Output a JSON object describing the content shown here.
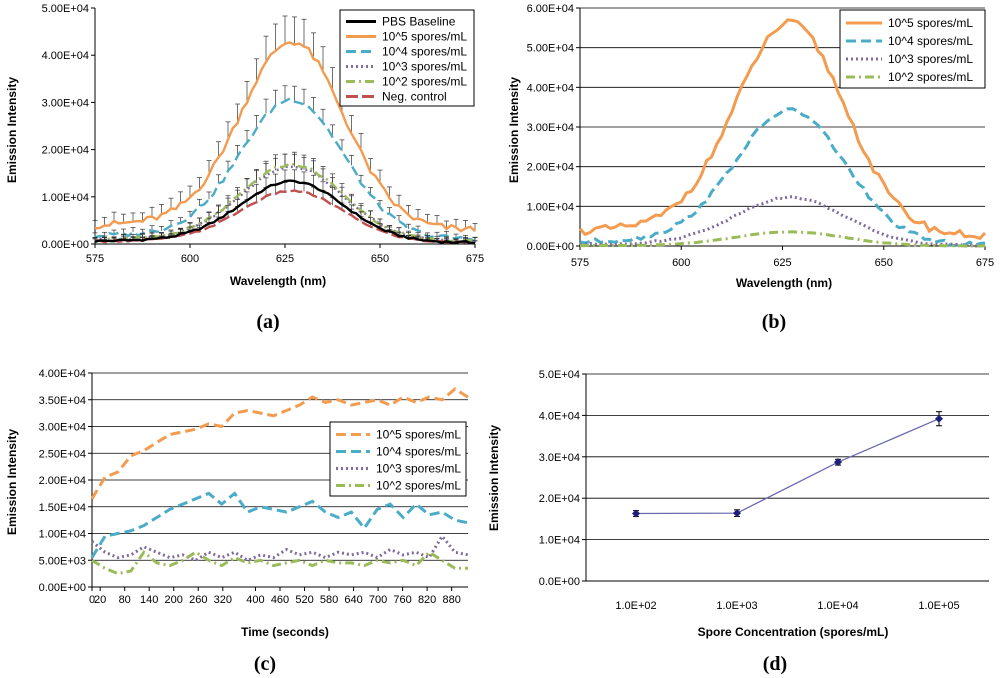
{
  "chart_data": [
    {
      "type": "line",
      "panel": "a",
      "caption": "(a)",
      "xlabel": "Wavelength (nm)",
      "ylabel": "Emission Intensity",
      "xlim": [
        575,
        675
      ],
      "ylim": [
        0,
        50000
      ],
      "x_ticks": [
        "575",
        "600",
        "625",
        "650",
        "675"
      ],
      "y_ticks": [
        "0.00E+00",
        "1.00E+04",
        "2.00E+04",
        "3.00E+04",
        "4.00E+04",
        "5.00E+04"
      ],
      "legend_position": "top-right",
      "error_bars": true,
      "series": [
        {
          "name": "PBS Baseline",
          "color": "#000000",
          "dash": "solid",
          "baseline": 300,
          "peak": 13000,
          "err": 1800
        },
        {
          "name": "10^5 spores/mL",
          "color": "#f39b4f",
          "dash": "solid",
          "baseline": 3000,
          "peak": 42000,
          "err": 4500
        },
        {
          "name": "10^4 spores/mL",
          "color": "#4aacc6",
          "dash": "dashed",
          "baseline": 1000,
          "peak": 30000,
          "err": 2500
        },
        {
          "name": "10^3 spores/mL",
          "color": "#7f6c9e",
          "dash": "dotted",
          "baseline": 500,
          "peak": 16000,
          "err": 2000
        },
        {
          "name": "10^2 spores/mL",
          "color": "#9bbb59",
          "dash": "dashdot",
          "baseline": 500,
          "peak": 16500,
          "err": 2000
        },
        {
          "name": "Neg. control",
          "color": "#c0504d",
          "dash": "longdash",
          "baseline": 300,
          "peak": 11000,
          "err": 1500
        }
      ]
    },
    {
      "type": "line",
      "panel": "b",
      "caption": "(b)",
      "xlabel": "Wavelength (nm)",
      "ylabel": "Emission Intensity",
      "xlim": [
        575,
        675
      ],
      "ylim": [
        0,
        60000
      ],
      "x_ticks": [
        "575",
        "600",
        "625",
        "650",
        "675"
      ],
      "y_ticks": [
        "0.00E+00",
        "1.00E+04",
        "2.00E+04",
        "3.00E+04",
        "4.00E+04",
        "5.00E+04",
        "6.00E+04"
      ],
      "legend_position": "top-right",
      "series": [
        {
          "name": "10^5 spores/mL",
          "color": "#f39b4f",
          "dash": "solid",
          "baseline": 2500,
          "peak": 55000
        },
        {
          "name": "10^4 spores/mL",
          "color": "#4aacc6",
          "dash": "dashed",
          "baseline": 200,
          "peak": 33500
        },
        {
          "name": "10^3 spores/mL",
          "color": "#7f6c9e",
          "dash": "dotted",
          "baseline": 100,
          "peak": 12000
        },
        {
          "name": "10^2 spores/mL",
          "color": "#9bbb59",
          "dash": "dashdot",
          "baseline": 0,
          "peak": 3500
        }
      ]
    },
    {
      "type": "line",
      "panel": "c",
      "caption": "(c)",
      "xlabel": "Time (seconds)",
      "ylabel": "Emission Intensity",
      "xlim": [
        0,
        920
      ],
      "ylim": [
        0,
        40000
      ],
      "x_ticks": [
        "0",
        "20",
        "80",
        "140",
        "200",
        "260",
        "320",
        "400",
        "460",
        "520",
        "580",
        "640",
        "700",
        "760",
        "820",
        "880"
      ],
      "y_ticks": [
        "0.00E+00",
        "5.00E+03",
        "1.00E+04",
        "1.50E+04",
        "2.00E+04",
        "2.50E+04",
        "3.00E+04",
        "3.50E+04",
        "4.00E+04"
      ],
      "legend_position": "center-right",
      "series": [
        {
          "name": "10^5 spores/mL",
          "color": "#f39b4f",
          "dash": "dashed",
          "values": [
            16500,
            20500,
            21500,
            24500,
            25500,
            27000,
            28500,
            29000,
            29500,
            30500,
            30000,
            32500,
            33000,
            32500,
            32000,
            33000,
            34000,
            35500,
            34500,
            35000,
            34000,
            34500,
            35000,
            34000,
            35500,
            34500,
            35500,
            35000,
            37000,
            35500
          ]
        },
        {
          "name": "10^4 spores/mL",
          "color": "#4aacc6",
          "dash": "dashed",
          "values": [
            5500,
            9500,
            10000,
            10500,
            11500,
            13000,
            14500,
            15500,
            16500,
            17500,
            15500,
            17500,
            14000,
            15000,
            14500,
            14000,
            15000,
            16000,
            14000,
            13000,
            14000,
            11000,
            14500,
            15500,
            13000,
            15500,
            13500,
            14000,
            12500,
            12000
          ]
        },
        {
          "name": "10^3 spores/mL",
          "color": "#7f6c9e",
          "dash": "dotted",
          "values": [
            8500,
            6500,
            5500,
            6000,
            7500,
            6500,
            5500,
            6000,
            5000,
            6500,
            5500,
            6500,
            5000,
            6000,
            5500,
            7000,
            6000,
            6500,
            5500,
            6500,
            6000,
            6500,
            5500,
            7000,
            6000,
            6500,
            5500,
            9500,
            6500,
            6000
          ]
        },
        {
          "name": "10^2 spores/mL",
          "color": "#9bbb59",
          "dash": "dashdot",
          "values": [
            5000,
            3500,
            2500,
            3000,
            6500,
            4500,
            4000,
            5000,
            6500,
            5000,
            4000,
            5500,
            4500,
            5000,
            4000,
            4500,
            5000,
            4000,
            5000,
            4500,
            4500,
            4000,
            5000,
            4500,
            5000,
            4000,
            6500,
            5000,
            3500,
            3500
          ]
        }
      ]
    },
    {
      "type": "line",
      "panel": "d",
      "caption": "(d)",
      "xlabel": "Spore Concentration (spores/mL)",
      "ylabel": "Emission Intensity",
      "xscale": "log",
      "ylim": [
        0,
        50000
      ],
      "x_ticks": [
        "1.0E+02",
        "1.0E+03",
        "1.0E+04",
        "1.0E+05"
      ],
      "y_ticks": [
        "0.0E+00",
        "1.0E+04",
        "2.0E+04",
        "3.0E+04",
        "4.0E+04",
        "5.0E+04"
      ],
      "series": [
        {
          "name": "Emission Intensity",
          "color": "#1f1f7a",
          "marker": "diamond",
          "x": [
            100,
            1000,
            10000,
            100000
          ],
          "values": [
            16300,
            16400,
            28700,
            39200
          ],
          "errors": [
            700,
            800,
            700,
            1700
          ]
        }
      ]
    }
  ]
}
